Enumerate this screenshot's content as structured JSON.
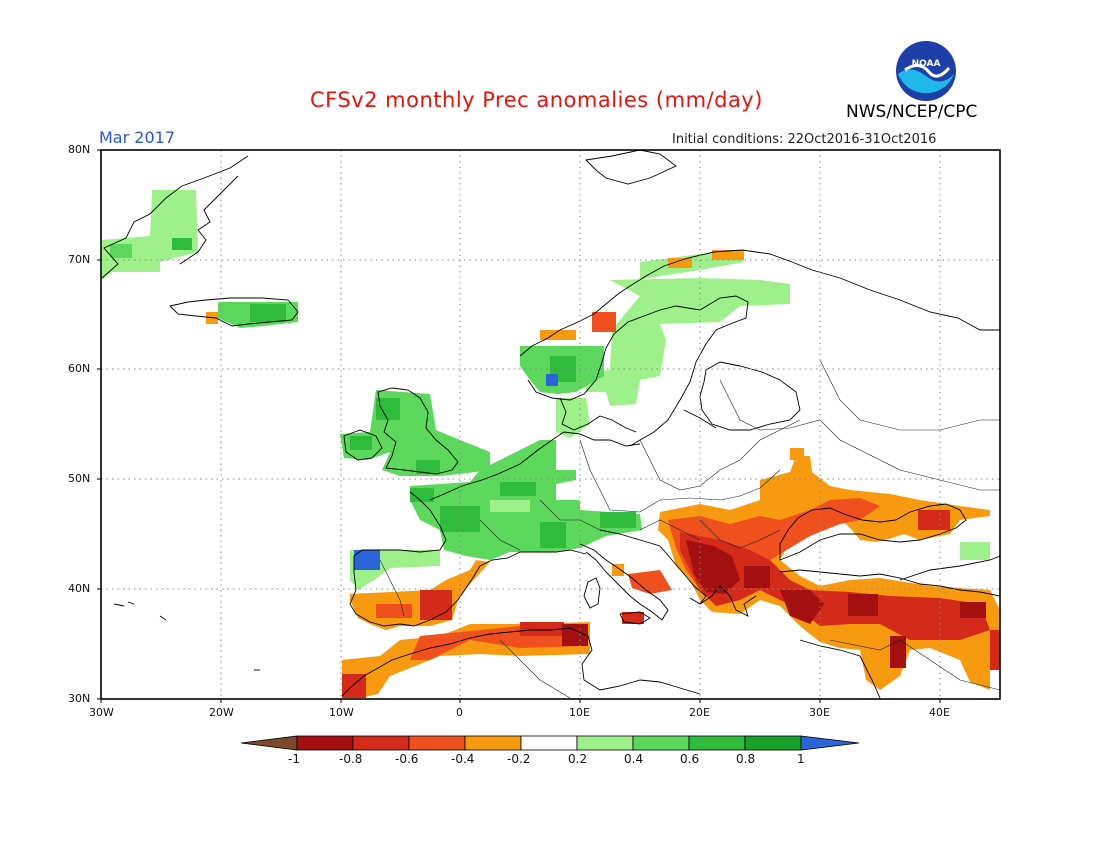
{
  "header": {
    "title": "CFSv2 monthly Prec anomalies (mm/day)",
    "org": "NWS/NCEP/CPC",
    "month": "Mar 2017",
    "initial_conditions": "Initial conditions: 22Oct2016-31Oct2016",
    "logo_text": "NOAA"
  },
  "map": {
    "lat_labels": [
      "80N",
      "70N",
      "60N",
      "50N",
      "40N",
      "30N"
    ],
    "lon_labels": [
      "30W",
      "20W",
      "10W",
      "0",
      "10E",
      "20E",
      "30E",
      "40E"
    ],
    "extent": {
      "lon": [
        -30,
        45
      ],
      "lat": [
        30,
        80
      ]
    }
  },
  "colorbar": {
    "labels": [
      "-1",
      "-0.8",
      "-0.6",
      "-0.4",
      "-0.2",
      "0.2",
      "0.4",
      "0.6",
      "0.8",
      "1"
    ],
    "colors": {
      "below": "#7a4a2a",
      "bins": [
        "#a40f0f",
        "#d42a1a",
        "#f0501e",
        "#f89a10",
        "#ffffff",
        "#9ef08a",
        "#5cd85c",
        "#2fbb3c",
        "#17a22a"
      ],
      "above": "#2b63d9"
    }
  }
}
